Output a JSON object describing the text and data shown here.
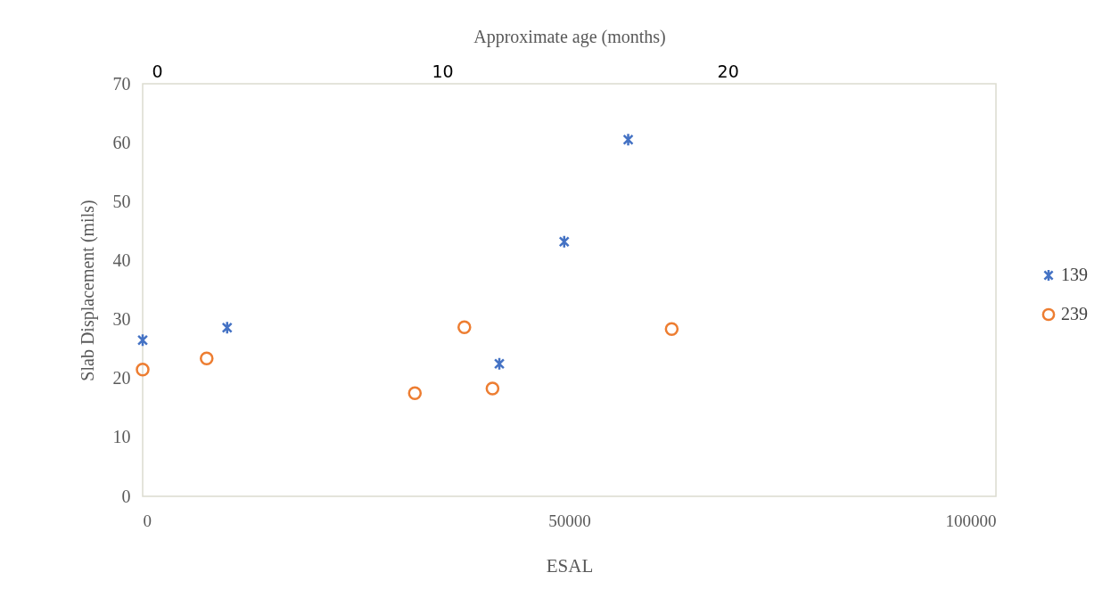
{
  "chart_data": {
    "type": "scatter",
    "xlabel": "ESAL",
    "ylabel": "Slab Displacement (mils)",
    "x2label": "Approximate age (months)",
    "xlim": [
      0,
      100000
    ],
    "xticks": [
      0,
      50000,
      100000
    ],
    "ylim": [
      0,
      70
    ],
    "yticks": [
      0,
      10,
      20,
      30,
      40,
      50,
      60,
      70
    ],
    "x2lim": [
      -0.5,
      29.4
    ],
    "x2ticks": [
      0,
      10,
      20
    ],
    "grid": false,
    "legend": "right",
    "series": [
      {
        "name": "139",
        "color": "#4472c4",
        "marker": "cross",
        "x": [
          0,
          9900,
          41800,
          49400,
          56900
        ],
        "values": [
          26.5,
          28.6,
          22.5,
          43.2,
          60.5
        ]
      },
      {
        "name": "239",
        "color": "#ed7d31",
        "marker": "circle",
        "x": [
          0,
          7500,
          31900,
          37700,
          41000,
          62000
        ],
        "values": [
          21.5,
          23.4,
          17.5,
          28.7,
          18.3,
          28.4
        ]
      }
    ]
  }
}
